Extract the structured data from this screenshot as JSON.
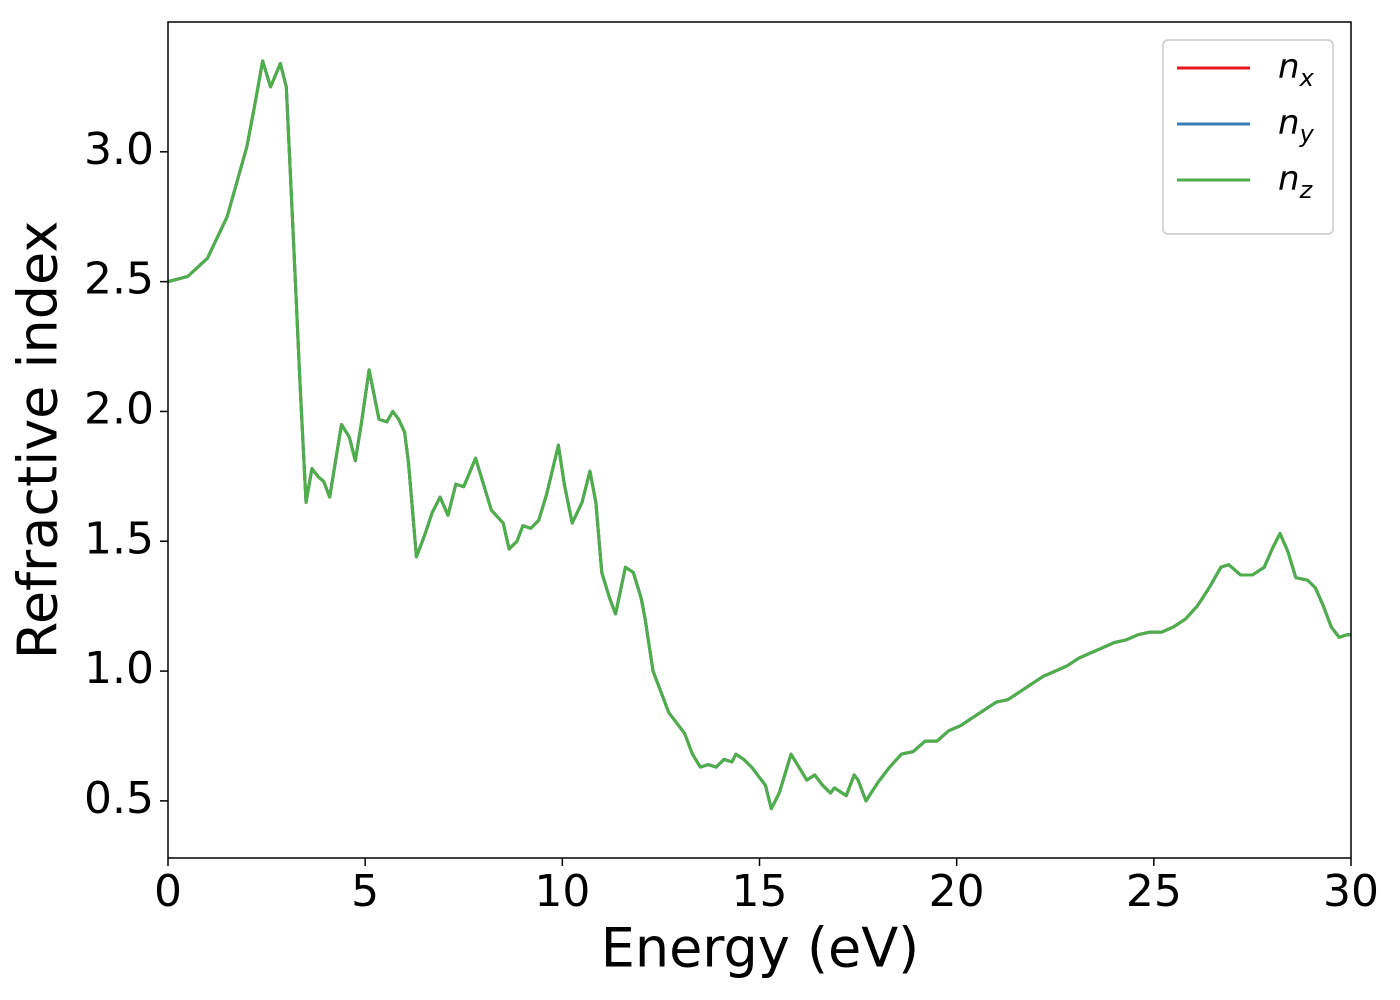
{
  "chart_data": {
    "type": "line",
    "xlabel": "Energy (eV)",
    "ylabel": "Refractive index",
    "x": [
      0,
      0.5,
      1,
      1.5,
      2,
      2.2,
      2.4,
      2.6,
      2.85,
      3,
      3.2,
      3.35,
      3.5,
      3.65,
      3.8,
      3.95,
      4.1,
      4.4,
      4.6,
      4.75,
      4.9,
      5.1,
      5.35,
      5.55,
      5.7,
      5.85,
      6,
      6.1,
      6.3,
      6.5,
      6.7,
      6.9,
      7.1,
      7.3,
      7.5,
      7.8,
      8,
      8.2,
      8.5,
      8.65,
      8.85,
      9,
      9.2,
      9.4,
      9.6,
      9.9,
      10.05,
      10.25,
      10.5,
      10.7,
      10.85,
      11,
      11.2,
      11.35,
      11.6,
      11.8,
      12,
      12.1,
      12.3,
      12.5,
      12.7,
      12.9,
      13.1,
      13.3,
      13.5,
      13.7,
      13.9,
      14.1,
      14.3,
      14.4,
      14.6,
      14.8,
      15,
      15.15,
      15.3,
      15.5,
      15.8,
      16,
      16.2,
      16.4,
      16.6,
      16.8,
      16.9,
      17.2,
      17.4,
      17.5,
      17.7,
      18,
      18.3,
      18.6,
      18.9,
      19.2,
      19.5,
      19.8,
      20.1,
      20.4,
      20.7,
      21,
      21.3,
      21.6,
      21.9,
      22.2,
      22.5,
      22.8,
      23.1,
      23.4,
      23.7,
      24,
      24.3,
      24.6,
      24.9,
      25.2,
      25.5,
      25.8,
      26.1,
      26.4,
      26.7,
      26.9,
      27.2,
      27.5,
      27.8,
      28,
      28.2,
      28.4,
      28.6,
      28.9,
      29.1,
      29.3,
      29.5,
      29.7,
      29.9,
      30
    ],
    "series": [
      {
        "name": "nx",
        "color": "#e41a1c",
        "values": [
          2.5,
          2.52,
          2.59,
          2.75,
          3.02,
          3.18,
          3.35,
          3.25,
          3.34,
          3.25,
          2.6,
          2.1,
          1.65,
          1.78,
          1.75,
          1.73,
          1.67,
          1.95,
          1.9,
          1.81,
          1.95,
          2.16,
          1.97,
          1.96,
          2.0,
          1.97,
          1.92,
          1.8,
          1.44,
          1.52,
          1.61,
          1.67,
          1.6,
          1.72,
          1.71,
          1.82,
          1.72,
          1.62,
          1.57,
          1.47,
          1.5,
          1.56,
          1.55,
          1.58,
          1.68,
          1.87,
          1.72,
          1.57,
          1.65,
          1.77,
          1.65,
          1.38,
          1.28,
          1.22,
          1.4,
          1.38,
          1.28,
          1.2,
          1.0,
          0.92,
          0.84,
          0.8,
          0.76,
          0.68,
          0.63,
          0.64,
          0.63,
          0.66,
          0.65,
          0.68,
          0.66,
          0.63,
          0.59,
          0.56,
          0.47,
          0.53,
          0.68,
          0.63,
          0.58,
          0.6,
          0.56,
          0.53,
          0.55,
          0.52,
          0.6,
          0.58,
          0.5,
          0.57,
          0.63,
          0.68,
          0.69,
          0.73,
          0.73,
          0.77,
          0.79,
          0.82,
          0.85,
          0.88,
          0.89,
          0.92,
          0.95,
          0.98,
          1.0,
          1.02,
          1.05,
          1.07,
          1.09,
          1.11,
          1.12,
          1.14,
          1.15,
          1.15,
          1.17,
          1.2,
          1.25,
          1.32,
          1.4,
          1.41,
          1.37,
          1.37,
          1.4,
          1.47,
          1.53,
          1.46,
          1.36,
          1.35,
          1.32,
          1.25,
          1.17,
          1.13,
          1.14,
          1.14
        ]
      },
      {
        "name": "ny",
        "color": "#377eb8",
        "values": [
          2.5,
          2.52,
          2.59,
          2.75,
          3.02,
          3.18,
          3.35,
          3.25,
          3.34,
          3.25,
          2.6,
          2.1,
          1.65,
          1.78,
          1.75,
          1.73,
          1.67,
          1.95,
          1.9,
          1.81,
          1.95,
          2.16,
          1.97,
          1.96,
          2.0,
          1.97,
          1.92,
          1.8,
          1.44,
          1.52,
          1.61,
          1.67,
          1.6,
          1.72,
          1.71,
          1.82,
          1.72,
          1.62,
          1.57,
          1.47,
          1.5,
          1.56,
          1.55,
          1.58,
          1.68,
          1.87,
          1.72,
          1.57,
          1.65,
          1.77,
          1.65,
          1.38,
          1.28,
          1.22,
          1.4,
          1.38,
          1.28,
          1.2,
          1.0,
          0.92,
          0.84,
          0.8,
          0.76,
          0.68,
          0.63,
          0.64,
          0.63,
          0.66,
          0.65,
          0.68,
          0.66,
          0.63,
          0.59,
          0.56,
          0.47,
          0.53,
          0.68,
          0.63,
          0.58,
          0.6,
          0.56,
          0.53,
          0.55,
          0.52,
          0.6,
          0.58,
          0.5,
          0.57,
          0.63,
          0.68,
          0.69,
          0.73,
          0.73,
          0.77,
          0.79,
          0.82,
          0.85,
          0.88,
          0.89,
          0.92,
          0.95,
          0.98,
          1.0,
          1.02,
          1.05,
          1.07,
          1.09,
          1.11,
          1.12,
          1.14,
          1.15,
          1.15,
          1.17,
          1.2,
          1.25,
          1.32,
          1.4,
          1.41,
          1.37,
          1.37,
          1.4,
          1.47,
          1.53,
          1.46,
          1.36,
          1.35,
          1.32,
          1.25,
          1.17,
          1.13,
          1.14,
          1.14
        ]
      },
      {
        "name": "nz",
        "color": "#4daf4a",
        "values": [
          2.5,
          2.52,
          2.59,
          2.75,
          3.02,
          3.18,
          3.35,
          3.25,
          3.34,
          3.25,
          2.6,
          2.1,
          1.65,
          1.78,
          1.75,
          1.73,
          1.67,
          1.95,
          1.9,
          1.81,
          1.95,
          2.16,
          1.97,
          1.96,
          2.0,
          1.97,
          1.92,
          1.8,
          1.44,
          1.52,
          1.61,
          1.67,
          1.6,
          1.72,
          1.71,
          1.82,
          1.72,
          1.62,
          1.57,
          1.47,
          1.5,
          1.56,
          1.55,
          1.58,
          1.68,
          1.87,
          1.72,
          1.57,
          1.65,
          1.77,
          1.65,
          1.38,
          1.28,
          1.22,
          1.4,
          1.38,
          1.28,
          1.2,
          1.0,
          0.92,
          0.84,
          0.8,
          0.76,
          0.68,
          0.63,
          0.64,
          0.63,
          0.66,
          0.65,
          0.68,
          0.66,
          0.63,
          0.59,
          0.56,
          0.47,
          0.53,
          0.68,
          0.63,
          0.58,
          0.6,
          0.56,
          0.53,
          0.55,
          0.52,
          0.6,
          0.58,
          0.5,
          0.57,
          0.63,
          0.68,
          0.69,
          0.73,
          0.73,
          0.77,
          0.79,
          0.82,
          0.85,
          0.88,
          0.89,
          0.92,
          0.95,
          0.98,
          1.0,
          1.02,
          1.05,
          1.07,
          1.09,
          1.11,
          1.12,
          1.14,
          1.15,
          1.15,
          1.17,
          1.2,
          1.25,
          1.32,
          1.4,
          1.41,
          1.37,
          1.37,
          1.4,
          1.47,
          1.53,
          1.46,
          1.36,
          1.35,
          1.32,
          1.25,
          1.17,
          1.13,
          1.14,
          1.14
        ]
      }
    ],
    "xlim": [
      0,
      30
    ],
    "ylim": [
      0.28,
      3.5
    ],
    "xticks": [
      0,
      5,
      10,
      15,
      20,
      25,
      30
    ],
    "yticks": [
      0.5,
      {
        "value": 1,
        "label": "1.0"
      },
      1.5,
      {
        "value": 2,
        "label": "2.0"
      },
      2.5,
      {
        "value": 3,
        "label": "3.0"
      }
    ],
    "grid": false,
    "legend": "upper right"
  }
}
